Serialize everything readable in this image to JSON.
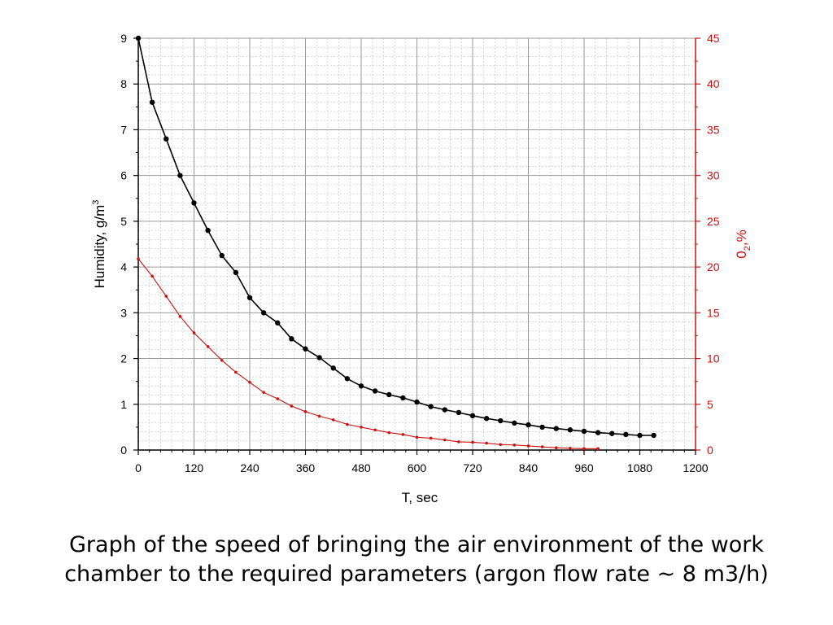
{
  "caption_line1": "Graph of the speed of bringing the air environment of the work",
  "caption_line2": "chamber to the required parameters (argon flow rate ~ 8 m3/h)",
  "chart_data": {
    "type": "line",
    "xlabel": "T, sec",
    "ylabel_left": "Humidity, g/m",
    "ylabel_left_sup": "3",
    "ylabel_right": "0",
    "ylabel_right_sub": "2",
    "ylabel_right_tail": ",%",
    "xlim": [
      0,
      1200
    ],
    "x_ticks": [
      0,
      120,
      240,
      360,
      480,
      600,
      720,
      840,
      960,
      1080,
      1200
    ],
    "ylim_left": [
      0,
      9
    ],
    "y_left_ticks": [
      0,
      1,
      2,
      3,
      4,
      5,
      6,
      7,
      8,
      9
    ],
    "ylim_right": [
      0,
      45
    ],
    "y_right_ticks": [
      0,
      5,
      10,
      15,
      20,
      25,
      30,
      35,
      40,
      45
    ],
    "grid": true,
    "colors": {
      "humidity": "#000000",
      "o2": "#cc1111",
      "grid_major": "#9a9a9a",
      "grid_minor": "#cfcfcf"
    },
    "series": [
      {
        "axis": "left",
        "x": [
          0,
          30,
          60,
          90,
          120,
          150,
          180,
          210,
          240,
          270,
          300,
          330,
          360,
          390,
          420,
          450,
          480,
          510,
          540,
          570,
          600,
          630,
          660,
          690,
          720,
          750,
          780,
          810,
          840,
          870,
          900,
          930,
          960,
          990,
          1020,
          1050,
          1080,
          1110
        ],
        "values": [
          9.0,
          7.6,
          6.8,
          6.0,
          5.4,
          4.8,
          4.25,
          3.88,
          3.33,
          3.0,
          2.78,
          2.43,
          2.21,
          2.02,
          1.79,
          1.56,
          1.4,
          1.29,
          1.21,
          1.14,
          1.05,
          0.95,
          0.88,
          0.82,
          0.75,
          0.69,
          0.64,
          0.59,
          0.55,
          0.5,
          0.47,
          0.44,
          0.41,
          0.38,
          0.36,
          0.34,
          0.32,
          0.32
        ]
      },
      {
        "axis": "right",
        "x": [
          0,
          30,
          60,
          90,
          120,
          150,
          180,
          210,
          240,
          270,
          300,
          330,
          360,
          390,
          420,
          450,
          480,
          510,
          540,
          570,
          600,
          630,
          660,
          690,
          720,
          750,
          780,
          810,
          840,
          870,
          900,
          930,
          960,
          990
        ],
        "values": [
          20.9,
          19.0,
          16.8,
          14.6,
          12.8,
          11.3,
          9.8,
          8.5,
          7.4,
          6.3,
          5.6,
          4.8,
          4.2,
          3.7,
          3.3,
          2.8,
          2.5,
          2.2,
          1.9,
          1.7,
          1.4,
          1.3,
          1.1,
          0.9,
          0.85,
          0.75,
          0.6,
          0.55,
          0.45,
          0.35,
          0.25,
          0.2,
          0.15,
          0.15
        ]
      }
    ]
  }
}
